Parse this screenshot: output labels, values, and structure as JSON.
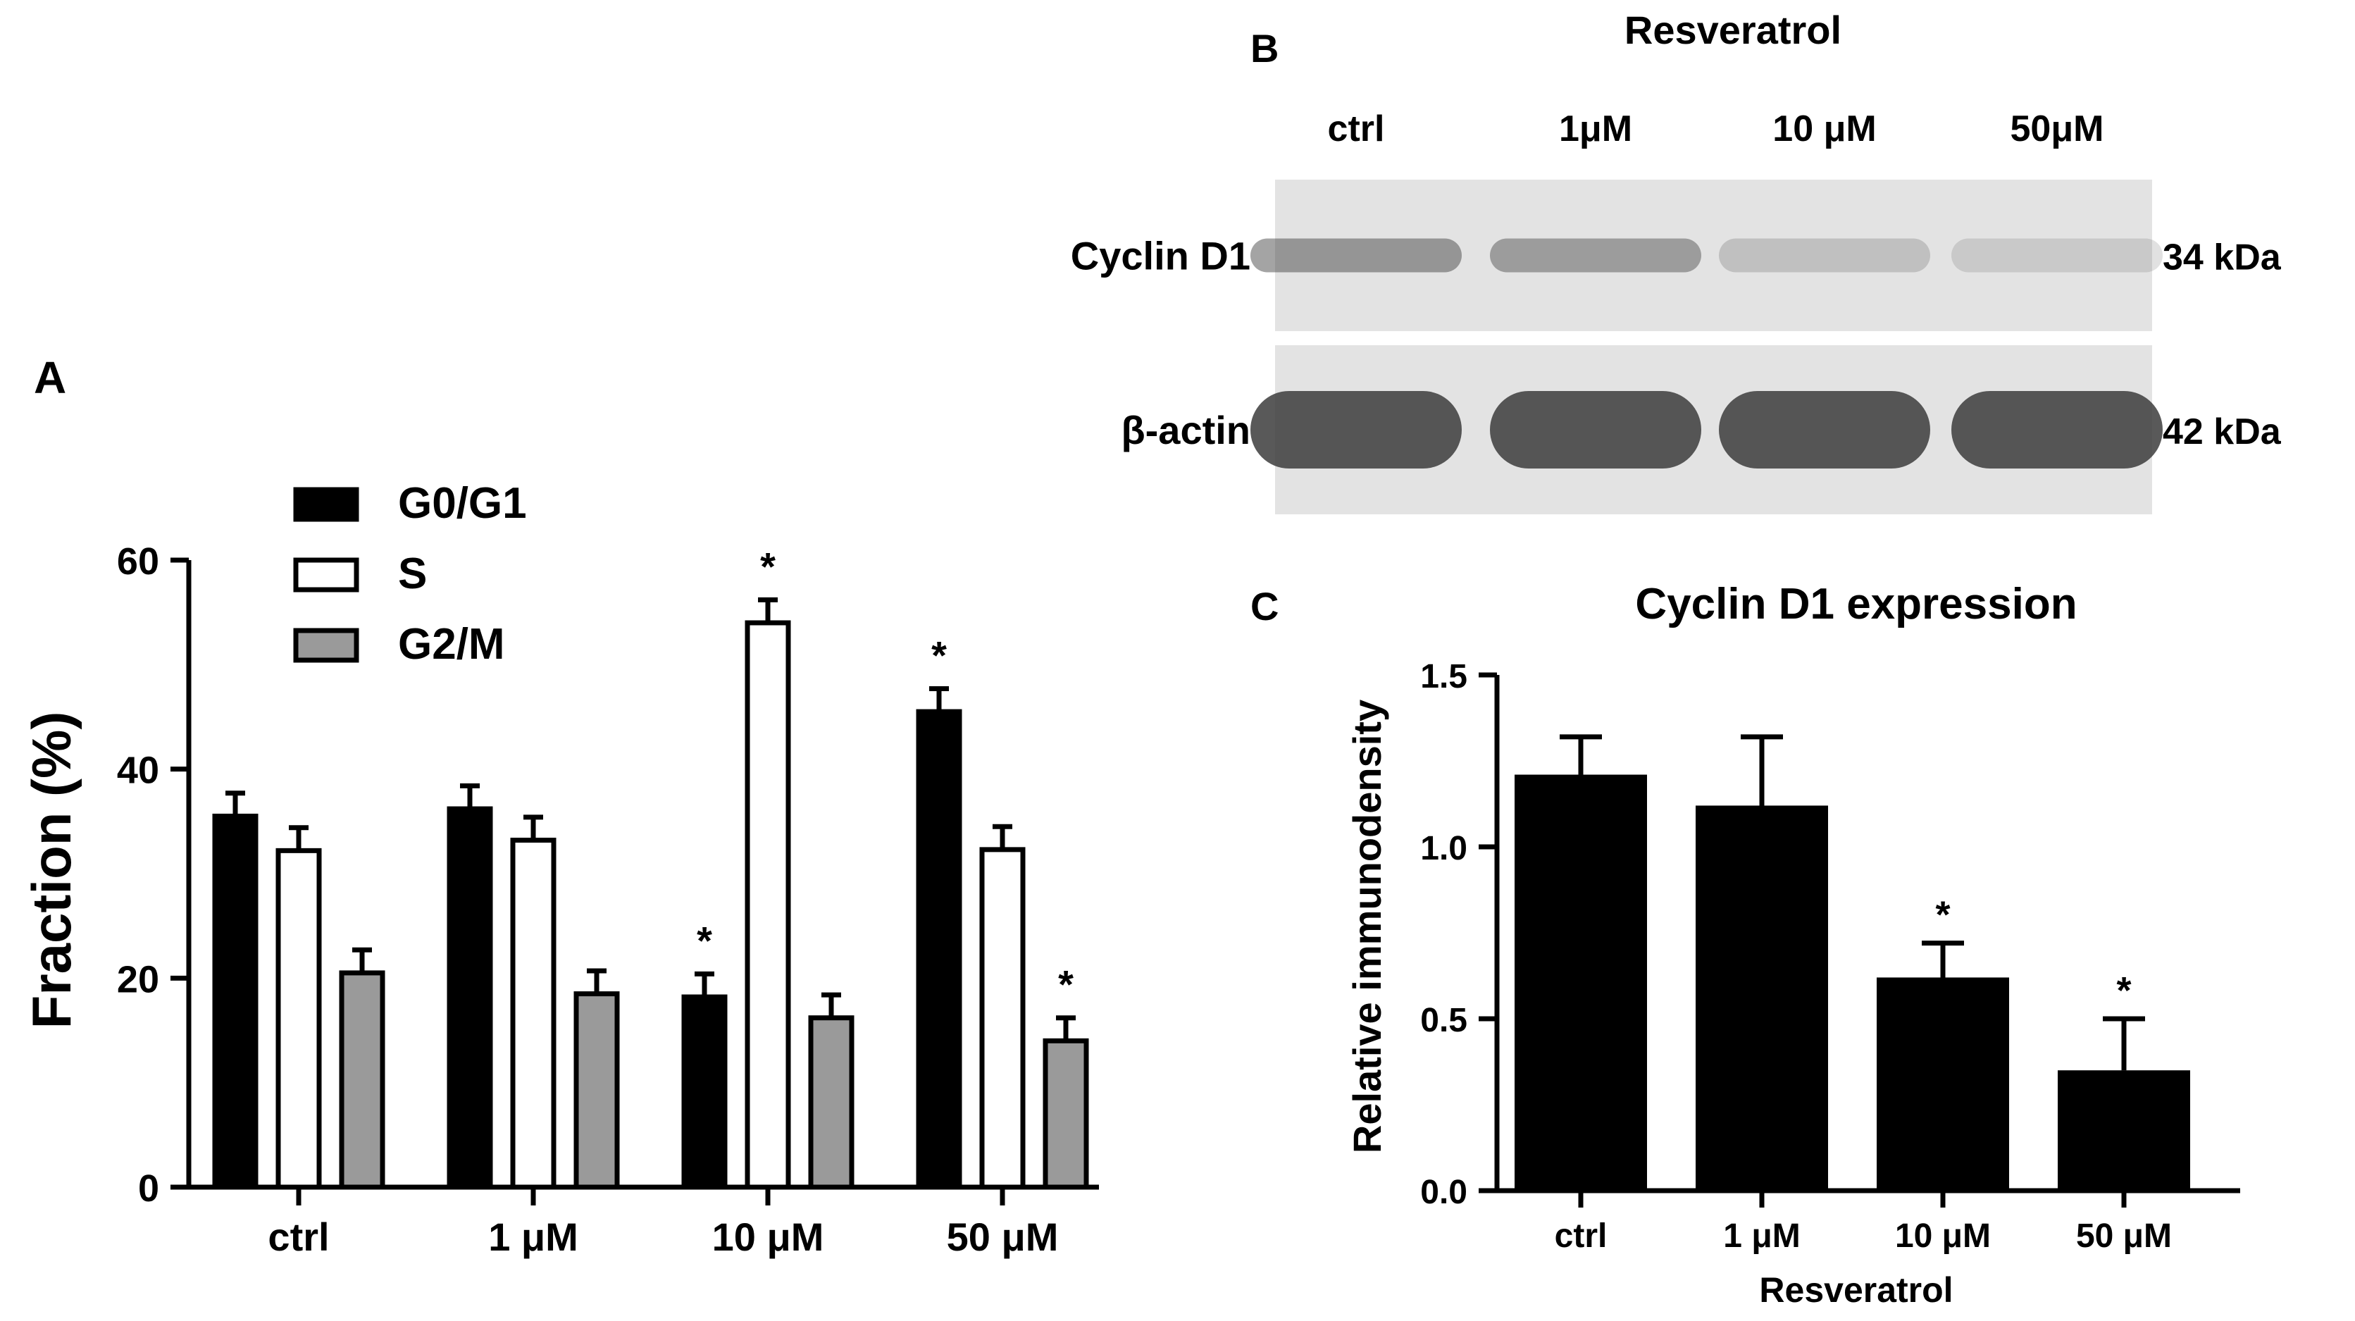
{
  "panel_labels": {
    "a": "A",
    "b": "B",
    "c": "C"
  },
  "blot": {
    "treatment_title": "Resveratrol",
    "lanes": [
      "ctrl",
      "1μM",
      "10 μM",
      "50μM"
    ],
    "rows": [
      {
        "label": "Cyclin D1",
        "size": "34 kDa",
        "band_intensity": [
          0.55,
          0.5,
          0.25,
          0.18
        ]
      },
      {
        "label": "β-actin",
        "size": "42 kDa",
        "band_intensity": [
          1.0,
          1.0,
          1.0,
          1.0
        ]
      }
    ],
    "background_color": "#e3e3e3",
    "band_color": "#3c3c3c"
  },
  "chart_data": [
    {
      "type": "bar",
      "panel": "A",
      "categories": [
        "ctrl",
        "1 μM",
        "10 μM",
        "50 μM"
      ],
      "series": [
        {
          "name": "G0/G1",
          "values": [
            35.5,
            36.2,
            18.2,
            45.5
          ],
          "errors": [
            2.2,
            2.2,
            2.2,
            2.2
          ],
          "significant": [
            false,
            false,
            true,
            true
          ],
          "color": "#000000",
          "fill": "#000000"
        },
        {
          "name": "S",
          "values": [
            32.2,
            33.2,
            54.0,
            32.3
          ],
          "errors": [
            2.2,
            2.2,
            2.2,
            2.2
          ],
          "significant": [
            false,
            false,
            true,
            false
          ],
          "color": "#000000",
          "fill": "#ffffff"
        },
        {
          "name": "G2/M",
          "values": [
            20.5,
            18.5,
            16.2,
            14.0
          ],
          "errors": [
            2.2,
            2.2,
            2.2,
            2.2
          ],
          "significant": [
            false,
            false,
            false,
            true
          ],
          "color": "#000000",
          "fill": "#9a9a9a"
        }
      ],
      "ylabel": "Fraction (%)",
      "xlabel": "",
      "ylim": [
        0,
        60
      ],
      "yticks": [
        0,
        20,
        40,
        60
      ],
      "significance_marker": "*",
      "legend": "top-left",
      "grid": false
    },
    {
      "type": "bar",
      "panel": "C",
      "title": "Cyclin D1 expression",
      "categories": [
        "ctrl",
        "1 μM",
        "10 μM",
        "50 μM"
      ],
      "values": [
        1.21,
        1.12,
        0.62,
        0.35
      ],
      "errors": [
        0.11,
        0.2,
        0.1,
        0.15
      ],
      "significant": [
        false,
        false,
        true,
        true
      ],
      "significance_marker": "*",
      "ylabel": "Relative immunodensity",
      "xlabel": "Resveratrol",
      "ylim": [
        0,
        1.5
      ],
      "yticks": [
        "0.0",
        "0.5",
        "1.0",
        "1.5"
      ],
      "color": "#000000",
      "grid": false
    }
  ]
}
